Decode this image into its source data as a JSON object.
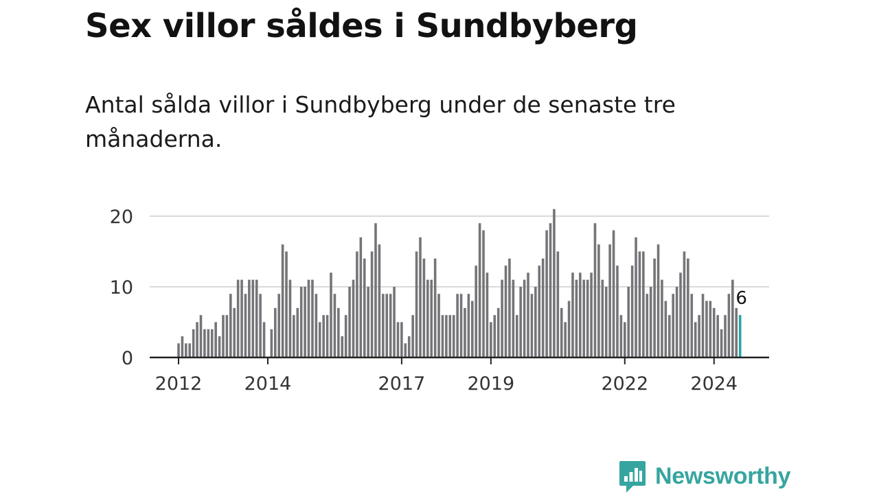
{
  "title": "Sex villor såldes i Sundbyberg",
  "subtitle": "Antal sålda villor i Sundbyberg under de senaste tre månaderna.",
  "brand": {
    "name": "Newsworthy"
  },
  "colors": {
    "bar": "#757478",
    "highlight": "#2aa3a3",
    "grid": "#d9d9d9",
    "axis": "#222222",
    "brand": "#36a5a0"
  },
  "chart_data": {
    "type": "bar",
    "title": "Sex villor såldes i Sundbyberg",
    "xlabel": "",
    "ylabel": "",
    "ylim": [
      0,
      21
    ],
    "yticks": [
      0,
      10,
      20
    ],
    "x_tick_labels": [
      "2012",
      "2014",
      "2017",
      "2019",
      "2022",
      "2024"
    ],
    "start": "2012-01",
    "frequency": "monthly",
    "values": [
      2,
      3,
      2,
      2,
      4,
      5,
      6,
      4,
      4,
      4,
      5,
      3,
      6,
      6,
      9,
      7,
      11,
      11,
      9,
      11,
      11,
      11,
      9,
      5,
      0,
      4,
      7,
      9,
      16,
      15,
      11,
      6,
      7,
      10,
      10,
      11,
      11,
      9,
      5,
      6,
      6,
      12,
      9,
      7,
      3,
      6,
      10,
      11,
      15,
      17,
      14,
      10,
      15,
      19,
      16,
      9,
      9,
      9,
      10,
      5,
      5,
      2,
      3,
      6,
      15,
      17,
      14,
      11,
      11,
      14,
      9,
      6,
      6,
      6,
      6,
      9,
      9,
      7,
      9,
      8,
      13,
      19,
      18,
      12,
      5,
      6,
      7,
      11,
      13,
      14,
      11,
      6,
      10,
      11,
      12,
      9,
      10,
      13,
      14,
      18,
      19,
      21,
      15,
      7,
      5,
      8,
      12,
      11,
      12,
      11,
      11,
      12,
      19,
      16,
      11,
      10,
      16,
      18,
      13,
      6,
      5,
      10,
      13,
      17,
      15,
      15,
      9,
      10,
      14,
      16,
      11,
      8,
      6,
      9,
      10,
      12,
      15,
      14,
      9,
      5,
      6,
      9,
      8,
      8,
      7,
      6,
      4,
      6,
      9,
      11,
      7,
      6
    ],
    "highlight": {
      "label": "6",
      "value": 6
    }
  }
}
